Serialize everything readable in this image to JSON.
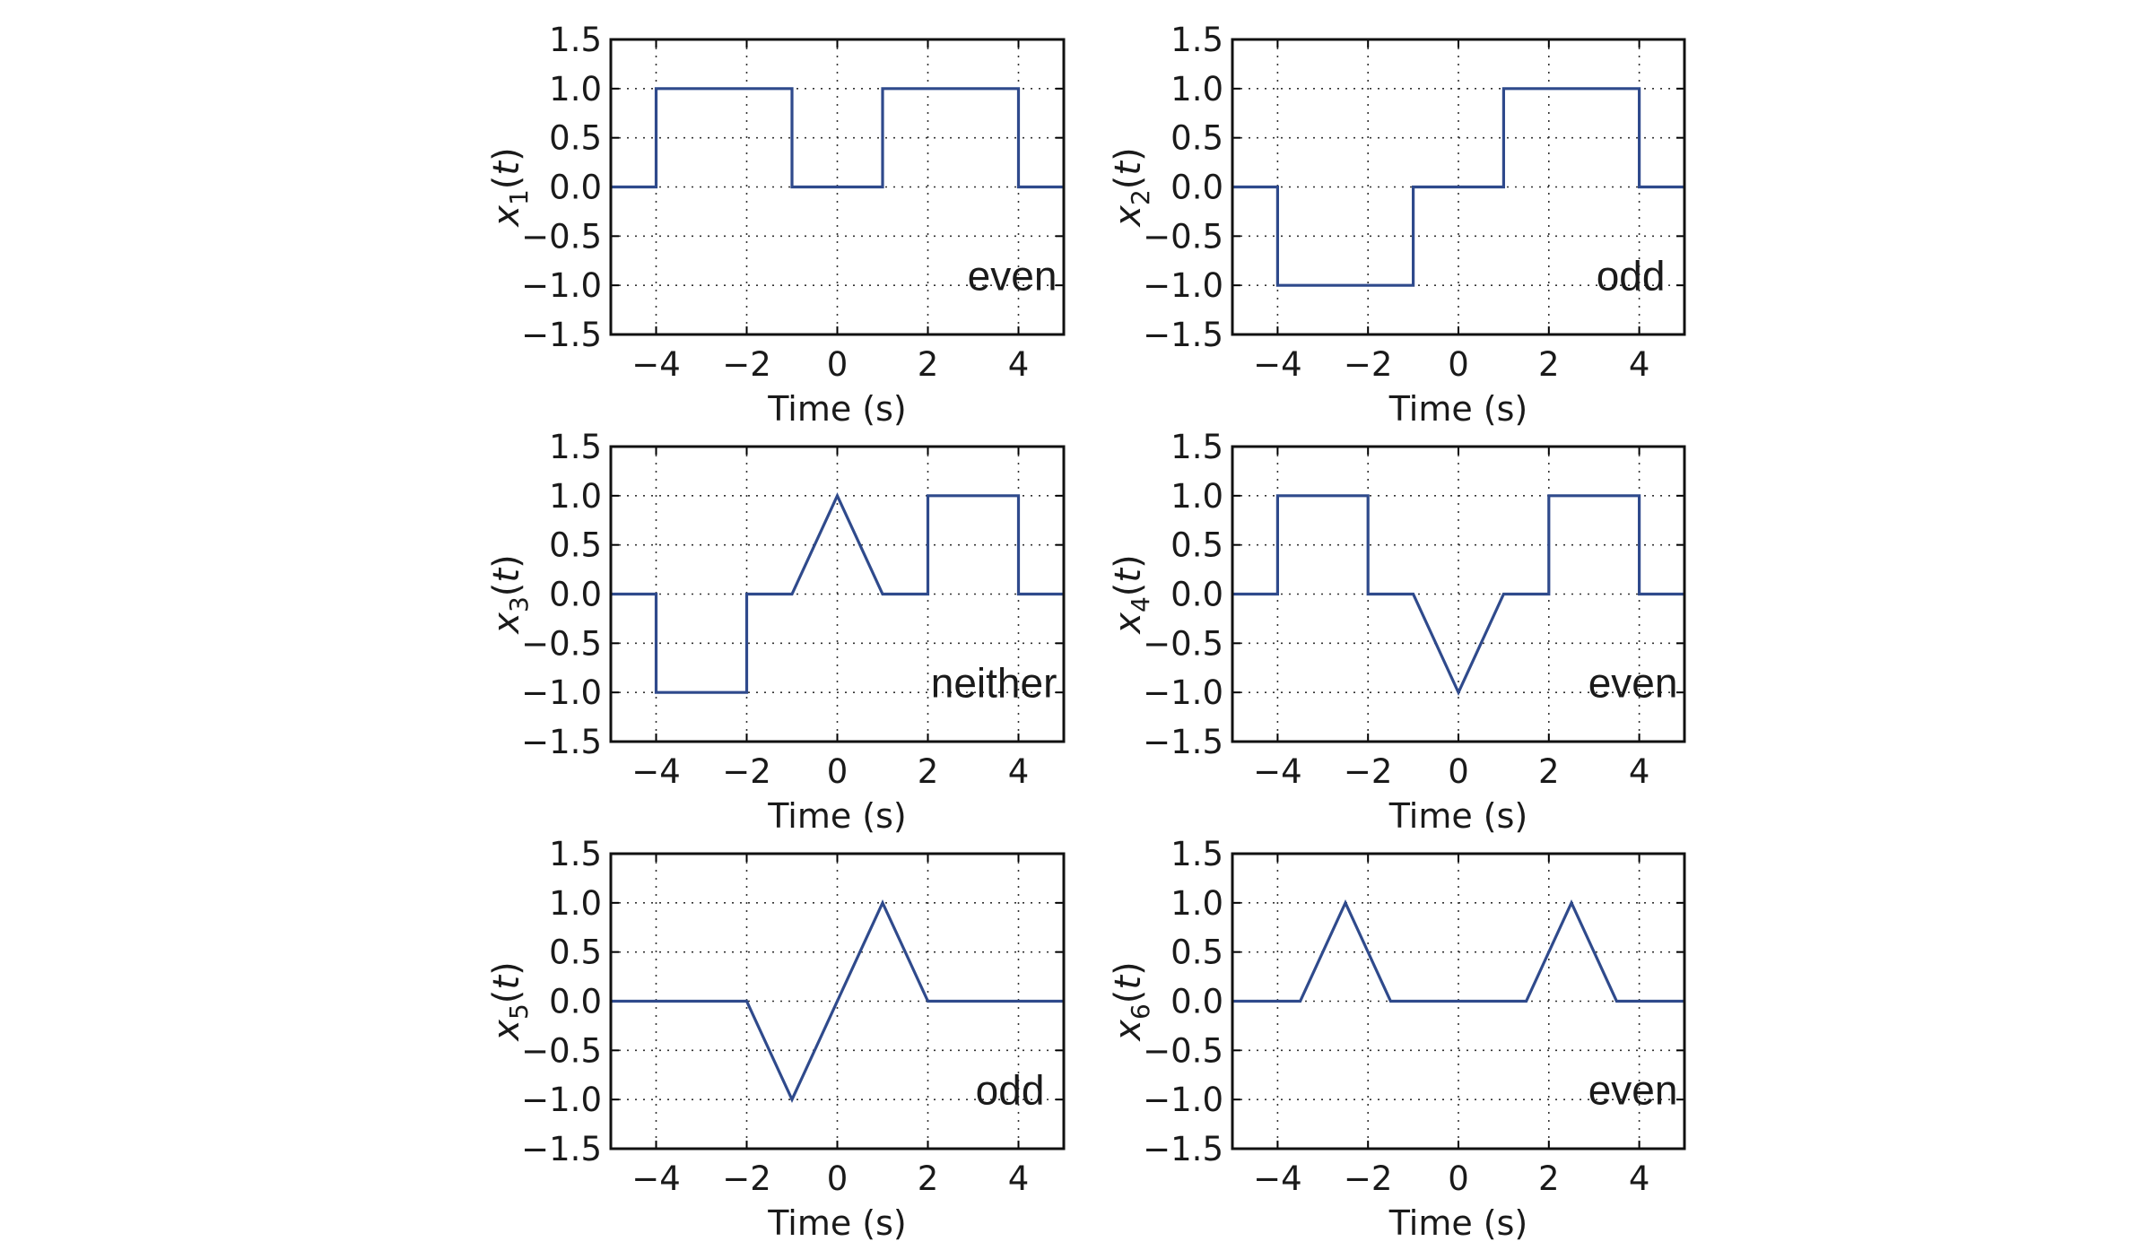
{
  "chart_data": [
    {
      "type": "line",
      "ylabel": "x",
      "ylabel_sub": "1",
      "ylabel_arg": "t",
      "xlabel": "Time (s)",
      "annotation": "even",
      "xlim": [
        -5,
        5
      ],
      "ylim": [
        -1.5,
        1.5
      ],
      "xticks": [
        -4,
        -2,
        0,
        2,
        4
      ],
      "yticks": [
        -1.5,
        -1.0,
        -0.5,
        0.0,
        0.5,
        1.0,
        1.5
      ],
      "x": [
        -5,
        -4,
        -4,
        -1,
        -1,
        1,
        1,
        4,
        4,
        5
      ],
      "y": [
        0,
        0,
        1,
        1,
        0,
        0,
        1,
        1,
        0,
        0
      ],
      "grid": true,
      "color": "#2f4a8c"
    },
    {
      "type": "line",
      "ylabel": "x",
      "ylabel_sub": "2",
      "ylabel_arg": "t",
      "xlabel": "Time (s)",
      "annotation": "odd",
      "xlim": [
        -5,
        5
      ],
      "ylim": [
        -1.5,
        1.5
      ],
      "xticks": [
        -4,
        -2,
        0,
        2,
        4
      ],
      "yticks": [
        -1.5,
        -1.0,
        -0.5,
        0.0,
        0.5,
        1.0,
        1.5
      ],
      "x": [
        -5,
        -4,
        -4,
        -1,
        -1,
        1,
        1,
        4,
        4,
        5
      ],
      "y": [
        0,
        0,
        -1,
        -1,
        0,
        0,
        1,
        1,
        0,
        0
      ],
      "grid": true,
      "color": "#2f4a8c"
    },
    {
      "type": "line",
      "ylabel": "x",
      "ylabel_sub": "3",
      "ylabel_arg": "t",
      "xlabel": "Time (s)",
      "annotation": "neither",
      "xlim": [
        -5,
        5
      ],
      "ylim": [
        -1.5,
        1.5
      ],
      "xticks": [
        -4,
        -2,
        0,
        2,
        4
      ],
      "yticks": [
        -1.5,
        -1.0,
        -0.5,
        0.0,
        0.5,
        1.0,
        1.5
      ],
      "x": [
        -5,
        -4,
        -4,
        -2,
        -2,
        -1,
        0,
        1,
        2,
        2,
        4,
        4,
        5
      ],
      "y": [
        0,
        0,
        -1,
        -1,
        0,
        0,
        1,
        0,
        0,
        1,
        1,
        0,
        0
      ],
      "grid": true,
      "color": "#2f4a8c"
    },
    {
      "type": "line",
      "ylabel": "x",
      "ylabel_sub": "4",
      "ylabel_arg": "t",
      "xlabel": "Time (s)",
      "annotation": "even",
      "xlim": [
        -5,
        5
      ],
      "ylim": [
        -1.5,
        1.5
      ],
      "xticks": [
        -4,
        -2,
        0,
        2,
        4
      ],
      "yticks": [
        -1.5,
        -1.0,
        -0.5,
        0.0,
        0.5,
        1.0,
        1.5
      ],
      "x": [
        -5,
        -4,
        -4,
        -2,
        -2,
        -1,
        0,
        1,
        2,
        2,
        4,
        4,
        5
      ],
      "y": [
        0,
        0,
        1,
        1,
        0,
        0,
        -1,
        0,
        0,
        1,
        1,
        0,
        0
      ],
      "grid": true,
      "color": "#2f4a8c"
    },
    {
      "type": "line",
      "ylabel": "x",
      "ylabel_sub": "5",
      "ylabel_arg": "t",
      "xlabel": "Time (s)",
      "annotation": "odd",
      "xlim": [
        -5,
        5
      ],
      "ylim": [
        -1.5,
        1.5
      ],
      "xticks": [
        -4,
        -2,
        0,
        2,
        4
      ],
      "yticks": [
        -1.5,
        -1.0,
        -0.5,
        0.0,
        0.5,
        1.0,
        1.5
      ],
      "x": [
        -5,
        -2,
        -1,
        1,
        2,
        5
      ],
      "y": [
        0,
        0,
        -1,
        1,
        0,
        0
      ],
      "grid": true,
      "color": "#2f4a8c"
    },
    {
      "type": "line",
      "ylabel": "x",
      "ylabel_sub": "6",
      "ylabel_arg": "t",
      "xlabel": "Time (s)",
      "annotation": "even",
      "xlim": [
        -5,
        5
      ],
      "ylim": [
        -1.5,
        1.5
      ],
      "xticks": [
        -4,
        -2,
        0,
        2,
        4
      ],
      "yticks": [
        -1.5,
        -1.0,
        -0.5,
        0.0,
        0.5,
        1.0,
        1.5
      ],
      "x": [
        -5,
        -3.5,
        -2.5,
        -1.5,
        1.5,
        2.5,
        3.5,
        5
      ],
      "y": [
        0,
        0,
        1,
        0,
        0,
        1,
        0,
        0
      ],
      "grid": true,
      "color": "#2f4a8c"
    }
  ]
}
